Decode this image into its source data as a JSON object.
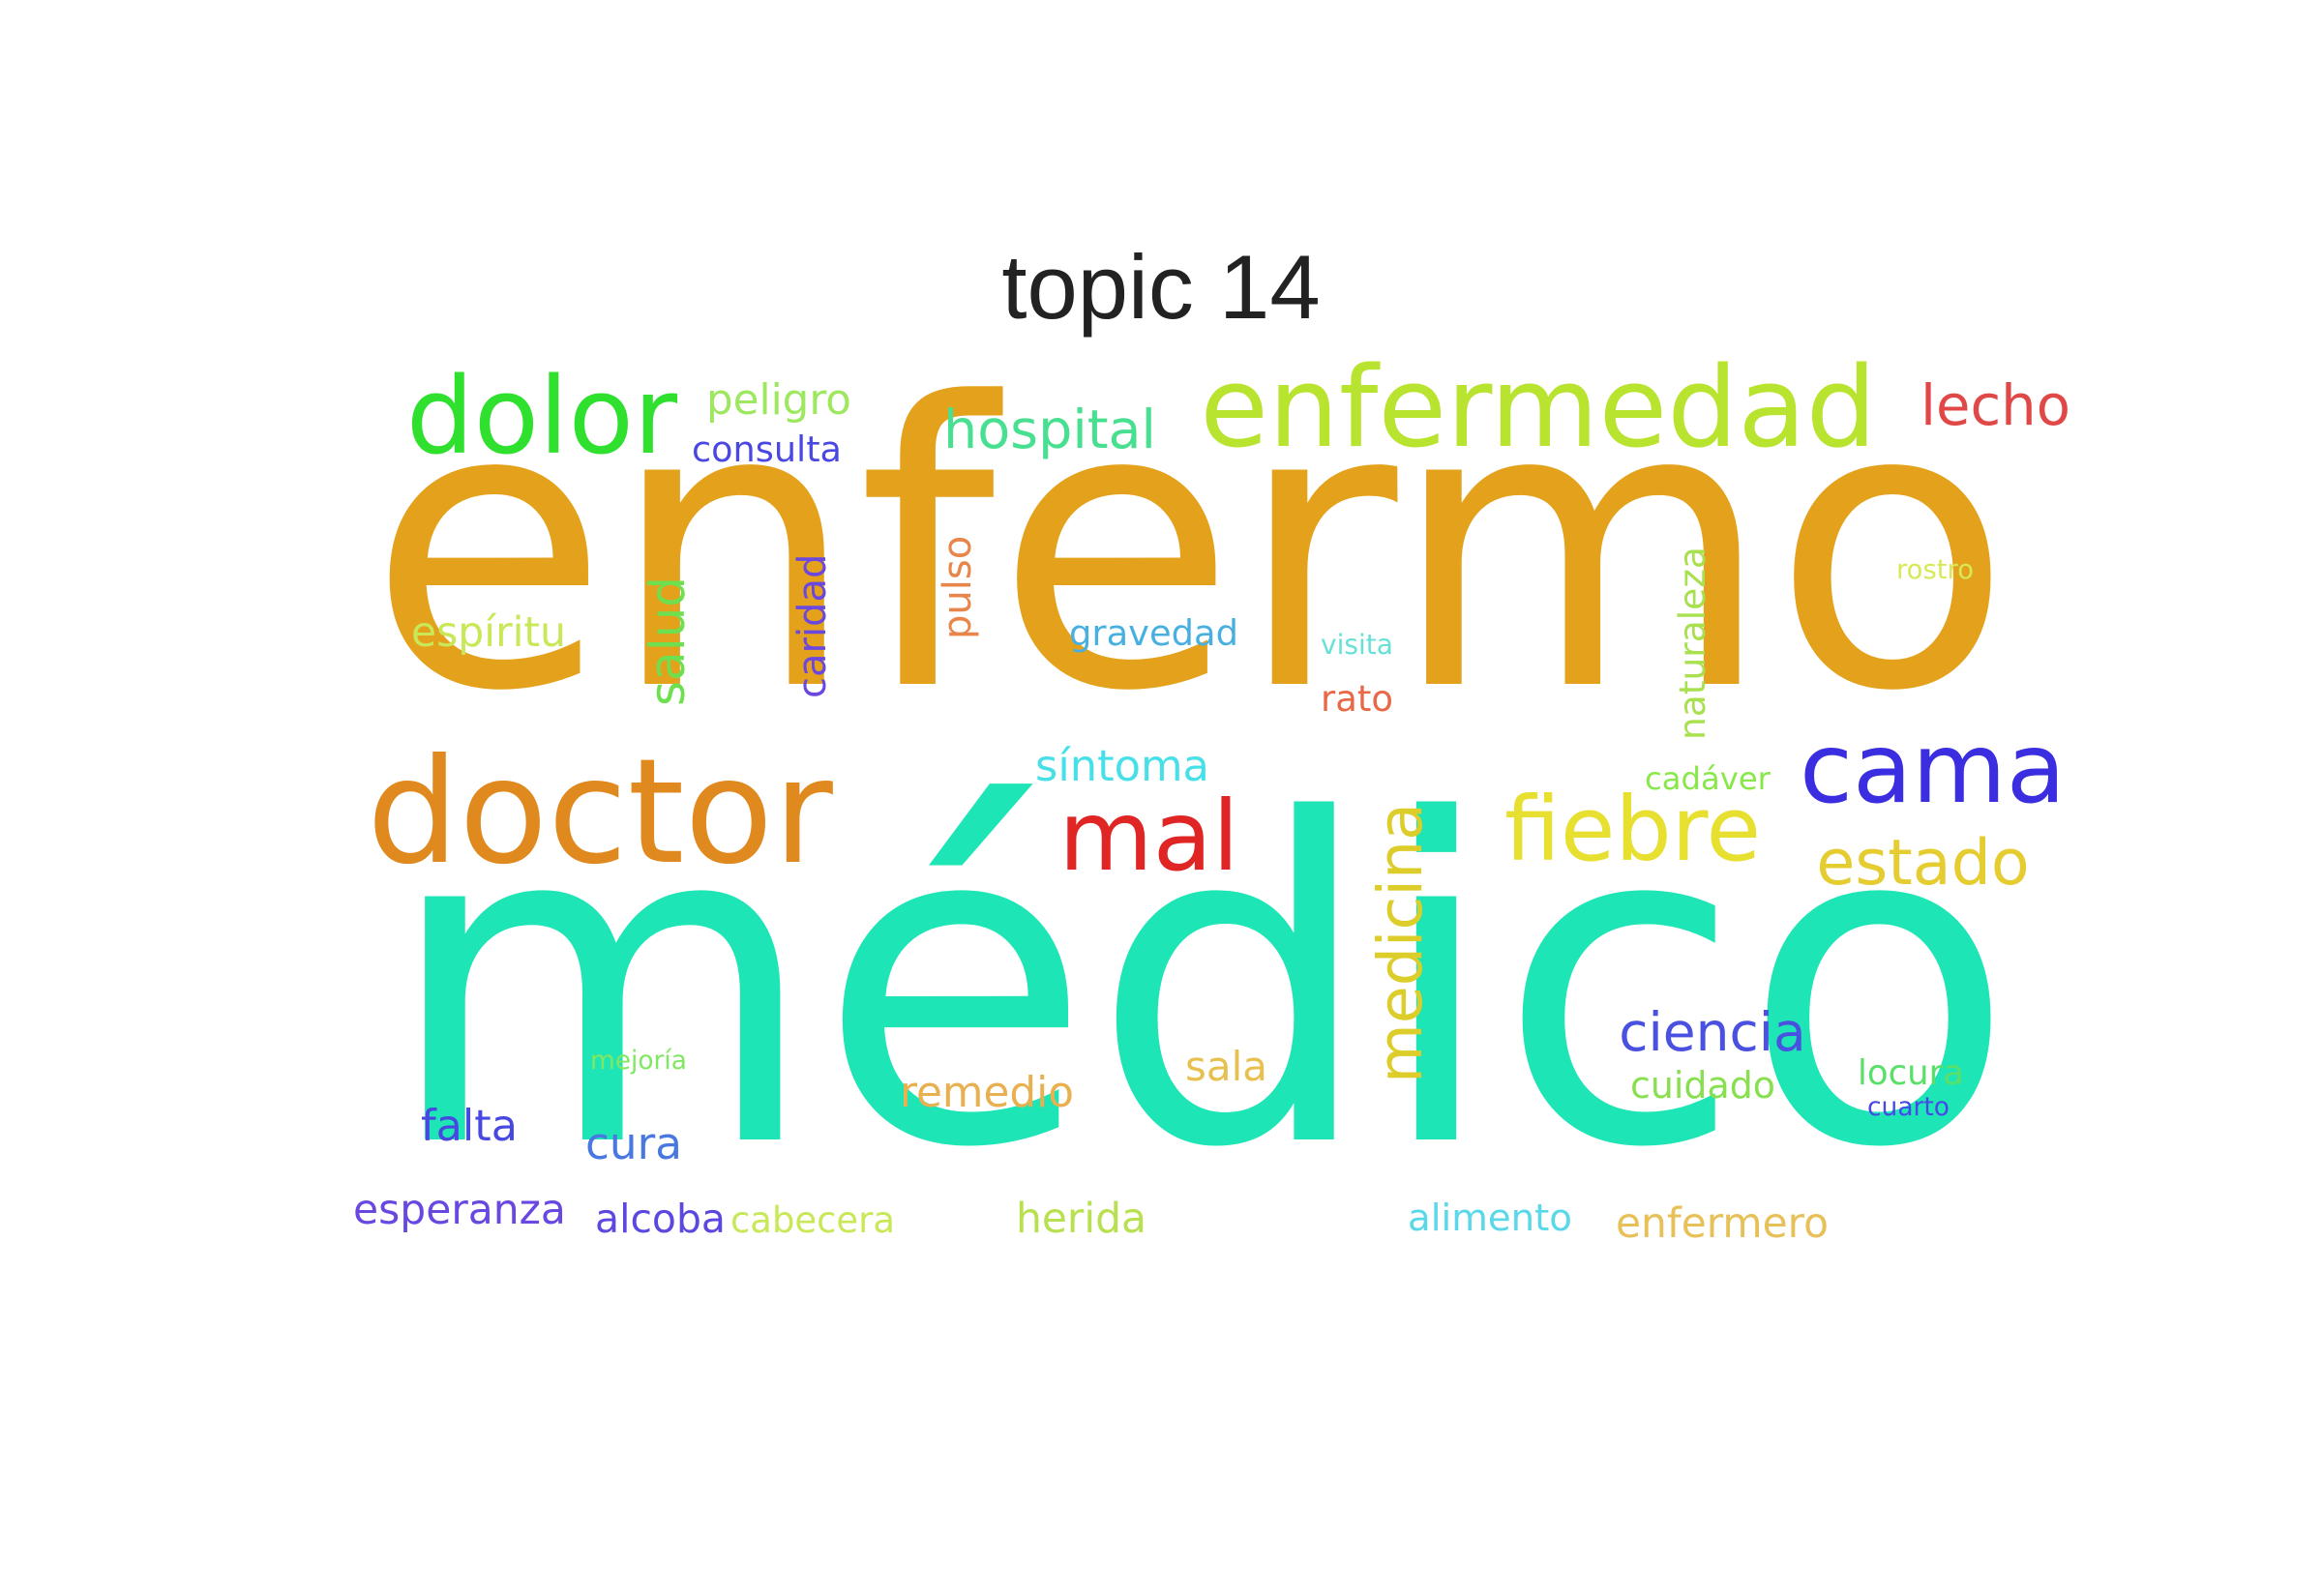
{
  "title": "topic 14",
  "words": [
    {
      "text": "médico",
      "color": "#1de5b5",
      "rotated": false
    },
    {
      "text": "enfermo",
      "color": "#e4a11b",
      "rotated": false
    },
    {
      "text": "doctor",
      "color": "#e0891e",
      "rotated": false
    },
    {
      "text": "enfermedad",
      "color": "#b8e32e",
      "rotated": false
    },
    {
      "text": "dolor",
      "color": "#2fe02f",
      "rotated": false
    },
    {
      "text": "mal",
      "color": "#e02525",
      "rotated": false
    },
    {
      "text": "cama",
      "color": "#3a2ee0",
      "rotated": false
    },
    {
      "text": "fiebre",
      "color": "#e8e030",
      "rotated": false
    },
    {
      "text": "estado",
      "color": "#e5cc30",
      "rotated": false
    },
    {
      "text": "medicina",
      "color": "#dccd2b",
      "rotated": true
    },
    {
      "text": "hospital",
      "color": "#48e090",
      "rotated": false
    },
    {
      "text": "lecho",
      "color": "#e04848",
      "rotated": false
    },
    {
      "text": "peligro",
      "color": "#9ee860",
      "rotated": false
    },
    {
      "text": "consulta",
      "color": "#4a48e0",
      "rotated": false
    },
    {
      "text": "salud",
      "color": "#6ee050",
      "rotated": true
    },
    {
      "text": "caridad",
      "color": "#6a48e0",
      "rotated": true
    },
    {
      "text": "pulso",
      "color": "#e8854a",
      "rotated": true
    },
    {
      "text": "espíritu",
      "color": "#c8e858",
      "rotated": false
    },
    {
      "text": "gravedad",
      "color": "#48b0e0",
      "rotated": false
    },
    {
      "text": "visita",
      "color": "#68e0d8",
      "rotated": false
    },
    {
      "text": "rato",
      "color": "#e86848",
      "rotated": false
    },
    {
      "text": "naturaleza",
      "color": "#a8e050",
      "rotated": true
    },
    {
      "text": "rostro",
      "color": "#d8e858",
      "rotated": false
    },
    {
      "text": "síntoma",
      "color": "#48e0e8",
      "rotated": false
    },
    {
      "text": "cadáver",
      "color": "#88e848",
      "rotated": false
    },
    {
      "text": "ciencia",
      "color": "#4a50e0",
      "rotated": false
    },
    {
      "text": "cuidado",
      "color": "#88e050",
      "rotated": false
    },
    {
      "text": "locura",
      "color": "#58e068",
      "rotated": false
    },
    {
      "text": "cuarto",
      "color": "#4848e8",
      "rotated": false
    },
    {
      "text": "mejoría",
      "color": "#80e860",
      "rotated": false
    },
    {
      "text": "remedio",
      "color": "#e8b050",
      "rotated": false
    },
    {
      "text": "sala",
      "color": "#e8c050",
      "rotated": false
    },
    {
      "text": "falta",
      "color": "#4848e0",
      "rotated": false
    },
    {
      "text": "cura",
      "color": "#4878e0",
      "rotated": false
    },
    {
      "text": "esperanza",
      "color": "#6848e0",
      "rotated": false
    },
    {
      "text": "alcoba",
      "color": "#5a48e0",
      "rotated": false
    },
    {
      "text": "cabecera",
      "color": "#c8e858",
      "rotated": false
    },
    {
      "text": "herida",
      "color": "#b8e050",
      "rotated": false
    },
    {
      "text": "alimento",
      "color": "#58d8e8",
      "rotated": false
    },
    {
      "text": "enfermero",
      "color": "#e8c058",
      "rotated": false
    }
  ]
}
